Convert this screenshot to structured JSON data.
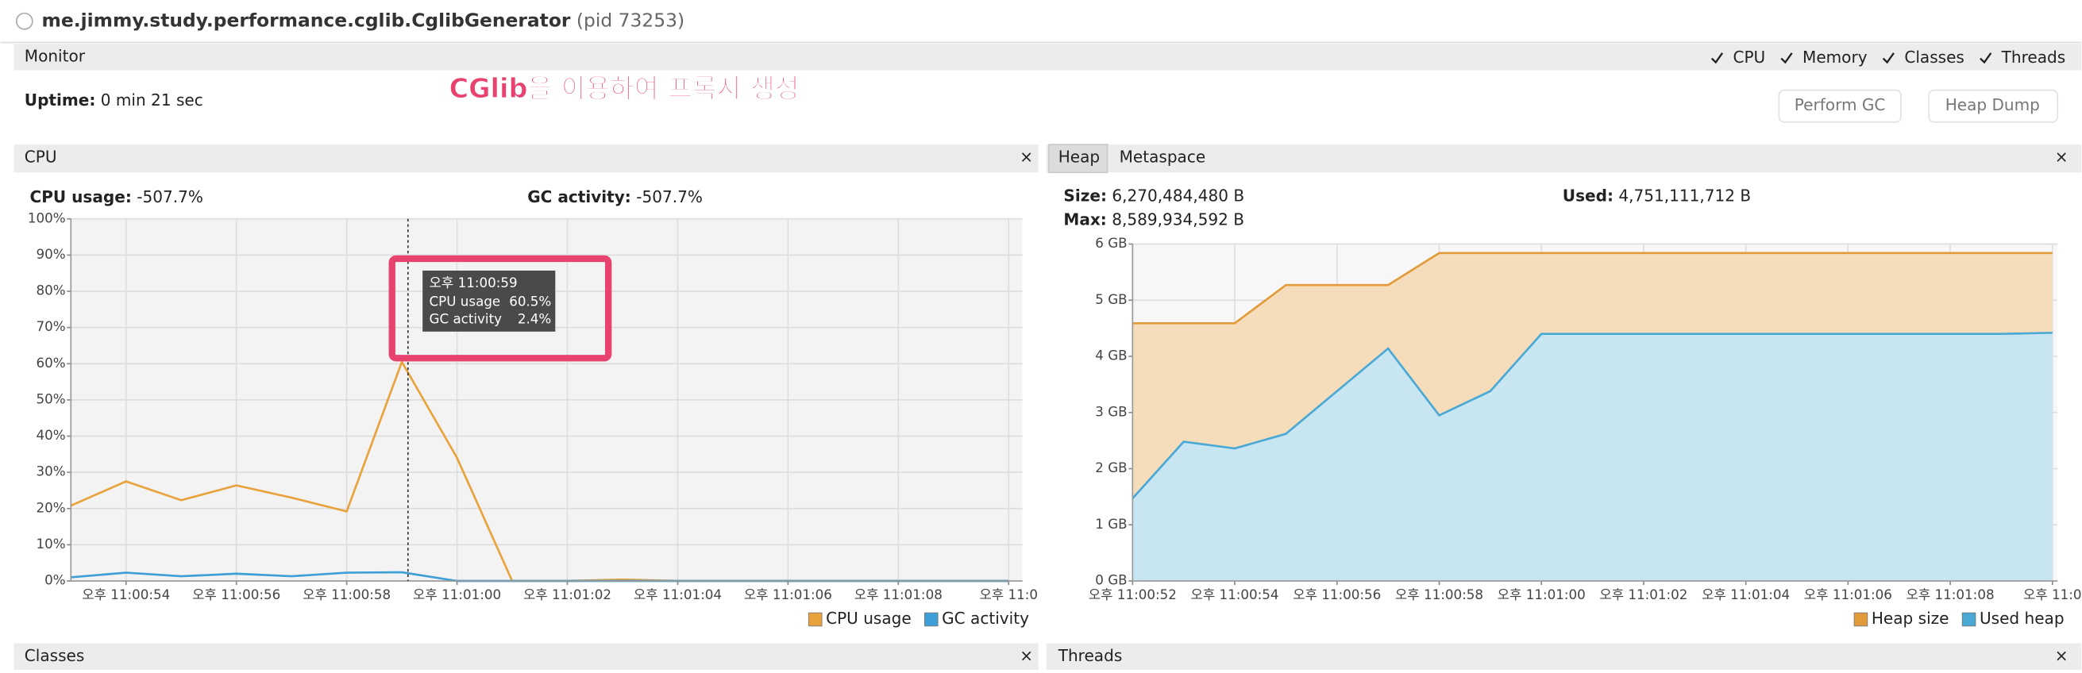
{
  "window": {
    "title": "me.jimmy.study.performance.cglib.CglibGenerator",
    "pid": "(pid 73253)"
  },
  "monitor": {
    "title": "Monitor",
    "checkboxes": [
      "CPU",
      "Memory",
      "Classes",
      "Threads"
    ],
    "uptime_label": "Uptime:",
    "uptime": "0 min 21 sec",
    "annotation": "CGlib을 이용하여 프록시 생성",
    "buttons": [
      "Perform GC",
      "Heap Dump"
    ]
  },
  "cpu_panel": {
    "tab": "CPU",
    "stats": [
      {
        "label": "CPU usage:",
        "value": "-507.7%"
      },
      {
        "label": "GC activity:",
        "value": "-507.7%"
      }
    ],
    "tooltip": {
      "time": "오후 11:00:59",
      "rows": [
        [
          "CPU usage",
          "60.5%"
        ],
        [
          "GC activity",
          "2.4%"
        ]
      ]
    }
  },
  "heap_panel": {
    "tabs": [
      "Heap",
      "Metaspace"
    ],
    "stats": [
      {
        "label": "Size:",
        "value": "6,270,484,480 B"
      },
      {
        "label": "Used:",
        "value": "4,751,111,712 B"
      },
      {
        "label": "Max:",
        "value": "8,589,934,592 B"
      }
    ]
  },
  "bottom_panels": [
    "Classes",
    "Threads"
  ],
  "chart_data": [
    {
      "type": "line",
      "x": [
        "11:00:53",
        "11:00:54",
        "11:00:55",
        "11:00:56",
        "11:00:57",
        "11:00:58",
        "11:00:59",
        "11:01:00",
        "11:01:01",
        "11:01:02",
        "11:01:03",
        "11:01:04",
        "11:01:05",
        "11:01:06",
        "11:01:07",
        "11:01:08",
        "11:01:09",
        "11:01:10"
      ],
      "series": [
        {
          "name": "CPU usage",
          "color": "#e8a33d",
          "values": [
            20.8,
            27.5,
            22.3,
            26.4,
            23,
            19.2,
            60.5,
            34,
            0,
            0,
            0.4,
            0,
            0,
            0,
            0,
            0,
            0,
            0
          ]
        },
        {
          "name": "GC activity",
          "color": "#3d9fd6",
          "values": [
            1,
            2.3,
            1.3,
            2,
            1.3,
            2.3,
            2.4,
            0,
            0,
            0,
            0,
            0,
            0,
            0,
            0,
            0,
            0,
            0
          ]
        }
      ],
      "xlim": [
        "11:00:53",
        "11:01:10.25"
      ],
      "xticks": [
        {
          "value": "11:00:54",
          "label": "오후 11:00:54"
        },
        {
          "value": "11:00:56",
          "label": "오후 11:00:56"
        },
        {
          "value": "11:00:58",
          "label": "오후 11:00:58"
        },
        {
          "value": "11:01:00",
          "label": "오후 11:01:00"
        },
        {
          "value": "11:01:02",
          "label": "오후 11:01:02"
        },
        {
          "value": "11:01:04",
          "label": "오후 11:01:04"
        },
        {
          "value": "11:01:06",
          "label": "오후 11:01:06"
        },
        {
          "value": "11:01:08",
          "label": "오후 11:01:08"
        },
        {
          "value": "11:01:10",
          "label": "오후 11:0"
        }
      ],
      "ylim": [
        0,
        100
      ],
      "yticks": [
        {
          "value": 0,
          "label": "0%"
        },
        {
          "value": 10,
          "label": "10%"
        },
        {
          "value": 20,
          "label": "20%"
        },
        {
          "value": 30,
          "label": "30%"
        },
        {
          "value": 40,
          "label": "40%"
        },
        {
          "value": 50,
          "label": "50%"
        },
        {
          "value": 60,
          "label": "60%"
        },
        {
          "value": 70,
          "label": "70%"
        },
        {
          "value": 80,
          "label": "80%"
        },
        {
          "value": 90,
          "label": "90%"
        },
        {
          "value": 100,
          "label": "100%"
        }
      ],
      "grid": true
    },
    {
      "type": "area",
      "x": [
        "11:00:52",
        "11:00:53",
        "11:00:54",
        "11:00:55",
        "11:00:56",
        "11:00:57",
        "11:00:58",
        "11:00:59",
        "11:01:00",
        "11:01:01",
        "11:01:02",
        "11:01:03",
        "11:01:04",
        "11:01:05",
        "11:01:06",
        "11:01:07",
        "11:01:08",
        "11:01:09",
        "11:01:10"
      ],
      "series": [
        {
          "name": "Heap size",
          "color": "#e39a3b",
          "values": [
            4.59,
            4.59,
            4.59,
            5.27,
            5.27,
            5.27,
            5.84,
            5.84,
            5.84,
            5.84,
            5.84,
            5.84,
            5.84,
            5.84,
            5.84,
            5.84,
            5.84,
            5.84,
            5.84
          ]
        },
        {
          "name": "Used heap",
          "color": "#4aa9d4",
          "values": [
            1.47,
            2.48,
            2.36,
            2.62,
            3.38,
            4.14,
            2.95,
            3.38,
            4.4,
            4.4,
            4.4,
            4.4,
            4.4,
            4.4,
            4.4,
            4.4,
            4.4,
            4.4,
            4.42
          ]
        }
      ],
      "xlim": [
        "11:00:52",
        "11:01:10.1"
      ],
      "xticks": [
        {
          "value": "11:00:52",
          "label": "오후 11:00:52"
        },
        {
          "value": "11:00:54",
          "label": "오후 11:00:54"
        },
        {
          "value": "11:00:56",
          "label": "오후 11:00:56"
        },
        {
          "value": "11:00:58",
          "label": "오후 11:00:58"
        },
        {
          "value": "11:01:00",
          "label": "오후 11:01:00"
        },
        {
          "value": "11:01:02",
          "label": "오후 11:01:02"
        },
        {
          "value": "11:01:04",
          "label": "오후 11:01:04"
        },
        {
          "value": "11:01:06",
          "label": "오후 11:01:06"
        },
        {
          "value": "11:01:08",
          "label": "오후 11:01:08"
        },
        {
          "value": "11:01:10",
          "label": "오후 11:0"
        }
      ],
      "ylim": [
        0,
        6
      ],
      "yticks": [
        {
          "value": 0,
          "label": "0 GB"
        },
        {
          "value": 1,
          "label": "1 GB"
        },
        {
          "value": 2,
          "label": "2 GB"
        },
        {
          "value": 3,
          "label": "3 GB"
        },
        {
          "value": 4,
          "label": "4 GB"
        },
        {
          "value": 5,
          "label": "5 GB"
        },
        {
          "value": 6,
          "label": "6 GB"
        }
      ],
      "grid": true
    }
  ]
}
